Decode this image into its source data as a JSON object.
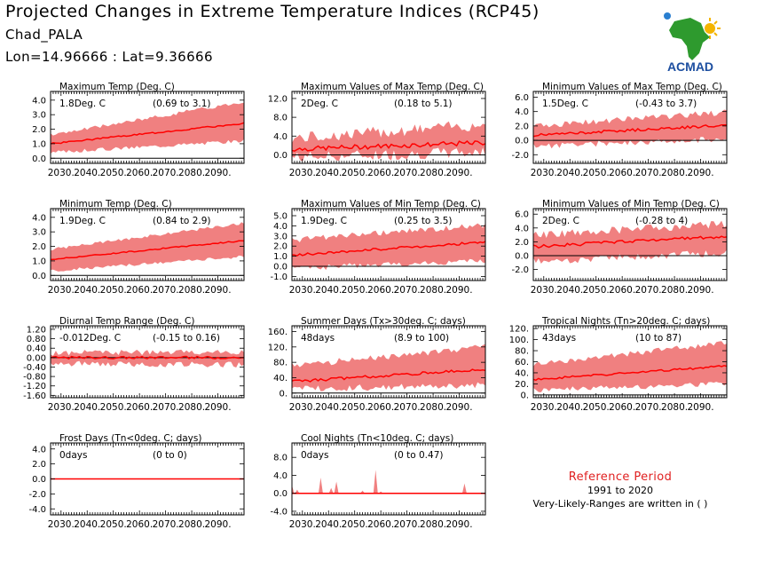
{
  "header": {
    "title": "Projected Changes in Extreme Temperature Indices (RCP45)",
    "station": "Chad_PALA",
    "coords": "Lon=14.96666 : Lat=9.36666"
  },
  "logo": {
    "text": "ACMAD",
    "icon": "africa-map-logo-icon",
    "colors": {
      "africa": "#2e9a2e",
      "text": "#1d4fa0",
      "sun": "#f4b400",
      "drop": "#2a7fd0"
    }
  },
  "reference": {
    "title": "Reference Period",
    "years": "1991 to 2020",
    "note": "Very-Likely-Ranges are written in ( )"
  },
  "style": {
    "band_color": "#f08080",
    "line_color": "#ff0000",
    "zero_line_color": "#000000"
  },
  "chart_data": [
    {
      "id": "max-temp",
      "type": "area",
      "title": "Maximum Temp (Deg. C)",
      "change": "1.8Deg. C",
      "range": "(0.69 to 3.1)",
      "x_ticks": [
        "2030.",
        "2040.",
        "2050.",
        "2060.",
        "2070.",
        "2080.",
        "2090."
      ],
      "xlim": [
        2026,
        2100
      ],
      "y_ticks": [
        "4.0",
        "3.0",
        "2.0",
        "1.0",
        "0.0"
      ],
      "y_tick_values": [
        4,
        3,
        2,
        1,
        0
      ],
      "ylim": [
        -0.35,
        4.6
      ],
      "median_start": 1.0,
      "median_end": 2.4,
      "low_start": 0.4,
      "low_end": 1.2,
      "high_start": 1.6,
      "high_end": 3.9,
      "noise": 0.25,
      "seed": 3
    },
    {
      "id": "max-of-max-temp",
      "type": "area",
      "title": "Maximum Values of Max Temp (Deg. C)",
      "change": "2Deg. C",
      "range": "(0.18 to 5.1)",
      "x_ticks": [
        "2030.",
        "2040.",
        "2050.",
        "2060.",
        "2070.",
        "2080.",
        "2090."
      ],
      "xlim": [
        2026,
        2100
      ],
      "y_ticks": [
        "12.0",
        "8.0",
        "4.0",
        "0.0"
      ],
      "y_tick_values": [
        12,
        8,
        4,
        0
      ],
      "ylim": [
        -1.8,
        13.5
      ],
      "median_start": 1.2,
      "median_end": 2.6,
      "low_start": -0.5,
      "low_end": 0.6,
      "high_start": 3.5,
      "high_end": 6.5,
      "noise": 2.5,
      "seed": 7
    },
    {
      "id": "min-of-max-temp",
      "type": "area",
      "title": "Minimum Values of Max Temp (Deg. C)",
      "change": "1.5Deg. C",
      "range": "(-0.43 to 3.7)",
      "x_ticks": [
        "2030.",
        "2040.",
        "2050.",
        "2060.",
        "2070.",
        "2080.",
        "2090."
      ],
      "xlim": [
        2026,
        2100
      ],
      "y_ticks": [
        "6.0",
        "4.0",
        "2.0",
        "0.0",
        "-2.0"
      ],
      "y_tick_values": [
        6,
        4,
        2,
        0,
        -2
      ],
      "ylim": [
        -3.2,
        6.8
      ],
      "median_start": 0.7,
      "median_end": 2.1,
      "low_start": -0.8,
      "low_end": 0.2,
      "high_start": 2.0,
      "high_end": 3.9,
      "noise": 0.9,
      "seed": 11
    },
    {
      "id": "min-temp",
      "type": "area",
      "title": "Minimum Temp (Deg. C)",
      "change": "1.9Deg. C",
      "range": "(0.84 to 2.9)",
      "x_ticks": [
        "2030.",
        "2040.",
        "2050.",
        "2060.",
        "2070.",
        "2080.",
        "2090."
      ],
      "xlim": [
        2026,
        2100
      ],
      "y_ticks": [
        "4.0",
        "3.0",
        "2.0",
        "1.0",
        "0.0"
      ],
      "y_tick_values": [
        4,
        3,
        2,
        1,
        0
      ],
      "ylim": [
        -0.35,
        4.6
      ],
      "median_start": 1.1,
      "median_end": 2.4,
      "low_start": 0.3,
      "low_end": 1.3,
      "high_start": 1.8,
      "high_end": 3.6,
      "noise": 0.2,
      "seed": 17
    },
    {
      "id": "max-of-min-temp",
      "type": "area",
      "title": "Maximum Values of Min Temp (Deg. C)",
      "change": "1.9Deg. C",
      "range": "(0.25 to 3.5)",
      "x_ticks": [
        "2030.",
        "2040.",
        "2050.",
        "2060.",
        "2070.",
        "2080.",
        "2090."
      ],
      "xlim": [
        2026,
        2100
      ],
      "y_ticks": [
        "5.0",
        "4.0",
        "3.0",
        "2.0",
        "1.0",
        "0.0",
        "-1.0"
      ],
      "y_tick_values": [
        5,
        4,
        3,
        2,
        1,
        0,
        -1
      ],
      "ylim": [
        -1.4,
        5.7
      ],
      "median_start": 1.1,
      "median_end": 2.4,
      "low_start": -0.2,
      "low_end": 0.6,
      "high_start": 2.6,
      "high_end": 4.1,
      "noise": 0.6,
      "seed": 23
    },
    {
      "id": "min-of-min-temp",
      "type": "area",
      "title": "Minimum Values of Min Temp (Deg. C)",
      "change": "2Deg. C",
      "range": "(-0.28 to 4)",
      "x_ticks": [
        "2030.",
        "2040.",
        "2050.",
        "2060.",
        "2070.",
        "2080.",
        "2090."
      ],
      "xlim": [
        2026,
        2100
      ],
      "y_ticks": [
        "6.0",
        "4.0",
        "2.0",
        "0.0",
        "-2.0"
      ],
      "y_tick_values": [
        6,
        4,
        2,
        0,
        -2
      ],
      "ylim": [
        -3.6,
        6.8
      ],
      "median_start": 1.3,
      "median_end": 2.8,
      "low_start": -0.8,
      "low_end": 0.4,
      "high_start": 3.0,
      "high_end": 4.6,
      "noise": 1.1,
      "seed": 29
    },
    {
      "id": "diurnal-temp-range",
      "type": "area",
      "title": "Diurnal Temp Range (Deg. C)",
      "change": "-0.012Deg. C",
      "range": "(-0.15 to 0.16)",
      "x_ticks": [
        "2030.",
        "2040.",
        "2050.",
        "2060.",
        "2070.",
        "2080.",
        "2090."
      ],
      "xlim": [
        2026,
        2100
      ],
      "y_ticks": [
        "1.20",
        "0.80",
        "0.40",
        "0.00",
        "-0.40",
        "-0.80",
        "-1.20",
        "-1.60"
      ],
      "y_tick_values": [
        1.2,
        0.8,
        0.4,
        0,
        -0.4,
        -0.8,
        -1.2,
        -1.6
      ],
      "ylim": [
        -1.7,
        1.35
      ],
      "median_start": 0.0,
      "median_end": 0.0,
      "low_start": -0.25,
      "low_end": -0.3,
      "high_start": 0.2,
      "high_end": 0.25,
      "noise": 0.25,
      "seed": 31
    },
    {
      "id": "summer-days",
      "type": "area",
      "title": "Summer Days (Tx>30deg. C; days)",
      "change": "48days",
      "range": "(8.9 to 100)",
      "x_ticks": [
        "2030.",
        "2040.",
        "2050.",
        "2060.",
        "2070.",
        "2080.",
        "2090."
      ],
      "xlim": [
        2026,
        2100
      ],
      "y_ticks": [
        "160.",
        "120.",
        "80.",
        "40.",
        "0."
      ],
      "y_tick_values": [
        160,
        120,
        80,
        40,
        0
      ],
      "ylim": [
        -12,
        175
      ],
      "median_start": 30,
      "median_end": 62,
      "low_start": 10,
      "low_end": 22,
      "high_start": 70,
      "high_end": 120,
      "noise": 18,
      "seed": 37
    },
    {
      "id": "tropical-nights",
      "type": "area",
      "title": "Tropical Nights (Tn>20deg. C; days)",
      "change": "43days",
      "range": "(10 to 87)",
      "x_ticks": [
        "2030.",
        "2040.",
        "2050.",
        "2060.",
        "2070.",
        "2080.",
        "2090."
      ],
      "xlim": [
        2026,
        2100
      ],
      "y_ticks": [
        "120.",
        "100.",
        "80.",
        "60.",
        "40.",
        "20.",
        "0."
      ],
      "y_tick_values": [
        120,
        100,
        80,
        60,
        40,
        20,
        0
      ],
      "ylim": [
        -5,
        125
      ],
      "median_start": 28,
      "median_end": 52,
      "low_start": 8,
      "low_end": 20,
      "high_start": 55,
      "high_end": 95,
      "noise": 10,
      "seed": 41
    },
    {
      "id": "frost-days",
      "type": "area",
      "title": "Frost Days (Tn<0deg. C; days)",
      "change": "0days",
      "range": "(0 to 0)",
      "x_ticks": [
        "2030.",
        "2040.",
        "2050.",
        "2060.",
        "2070.",
        "2080.",
        "2090."
      ],
      "xlim": [
        2026,
        2100
      ],
      "y_ticks": [
        "4.0",
        "2.0",
        "0.0",
        "-2.0",
        "-4.0"
      ],
      "y_tick_values": [
        4,
        2,
        0,
        -2,
        -4
      ],
      "ylim": [
        -4.8,
        4.8
      ],
      "median_start": 0,
      "median_end": 0,
      "low_start": 0,
      "low_end": 0,
      "high_start": 0,
      "high_end": 0,
      "noise": 0,
      "seed": 43
    },
    {
      "id": "cool-nights",
      "type": "area",
      "title": "Cool Nights (Tn<10deg. C; days)",
      "change": "0days",
      "range": "(0 to 0.47)",
      "x_ticks": [
        "2030.",
        "2040.",
        "2050.",
        "2060.",
        "2070.",
        "2080.",
        "2090."
      ],
      "xlim": [
        2026,
        2100
      ],
      "y_ticks": [
        "8.0",
        "4.0",
        "0.0",
        "-4.0"
      ],
      "y_tick_values": [
        8,
        4,
        0,
        -4
      ],
      "ylim": [
        -4.8,
        11.2
      ],
      "median_start": 0,
      "median_end": 0,
      "low_start": 0,
      "low_end": 0,
      "high_start": 0,
      "high_end": 0,
      "noise": 0,
      "seed": 47,
      "spikes": [
        [
          2026,
          1.8
        ],
        [
          2028,
          0.8
        ],
        [
          2037,
          3.5
        ],
        [
          2041,
          1.2
        ],
        [
          2043,
          2.6
        ],
        [
          2053,
          0.6
        ],
        [
          2058,
          5.2
        ],
        [
          2060,
          0.4
        ],
        [
          2092,
          2.2
        ]
      ]
    }
  ]
}
